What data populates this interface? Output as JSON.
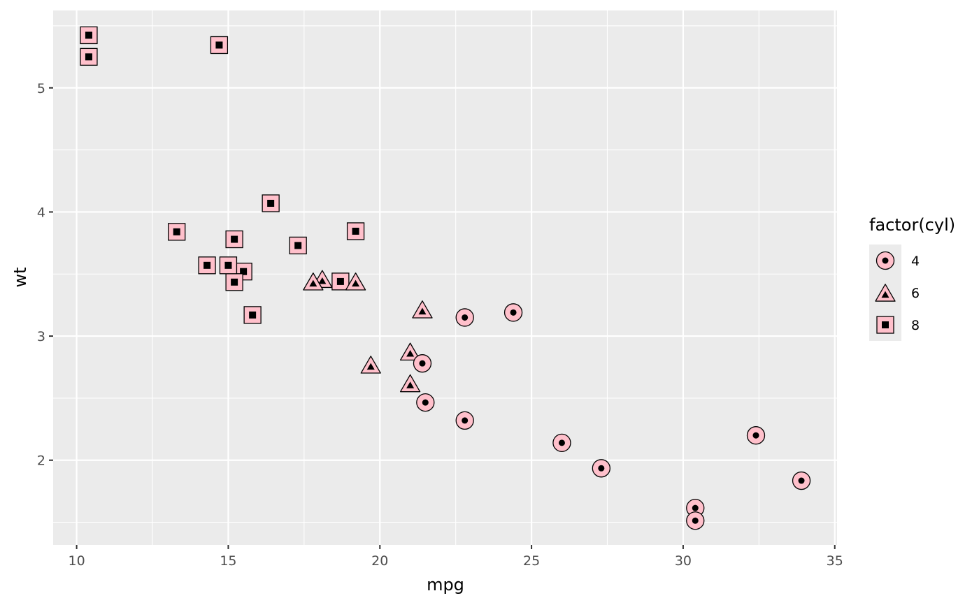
{
  "chart_data": {
    "type": "scatter",
    "title": "",
    "xlabel": "mpg",
    "ylabel": "wt",
    "xlim": [
      9.225,
      35.075
    ],
    "ylim": [
      1.31745,
      5.62355
    ],
    "x_ticks": [
      10,
      15,
      20,
      25,
      30,
      35
    ],
    "x_tick_labels": [
      "10",
      "15",
      "20",
      "25",
      "30",
      "35"
    ],
    "y_ticks": [
      2,
      3,
      4,
      5
    ],
    "y_tick_labels": [
      "2",
      "3",
      "4",
      "5"
    ],
    "grid": true,
    "background": "#ebebeb",
    "point_fill": "#ffc0cb",
    "point_stroke": "#000000",
    "legend": {
      "title": "factor(cyl)",
      "position": "right",
      "items": [
        {
          "label": "4",
          "shape": "circle"
        },
        {
          "label": "6",
          "shape": "triangle"
        },
        {
          "label": "8",
          "shape": "square"
        }
      ]
    },
    "series": [
      {
        "key": "4",
        "shape": "circle",
        "points": [
          [
            22.8,
            2.32
          ],
          [
            24.4,
            3.19
          ],
          [
            22.8,
            3.15
          ],
          [
            32.4,
            2.2
          ],
          [
            30.4,
            1.615
          ],
          [
            33.9,
            1.835
          ],
          [
            21.5,
            2.465
          ],
          [
            27.3,
            1.935
          ],
          [
            26.0,
            2.14
          ],
          [
            30.4,
            1.513
          ],
          [
            21.4,
            2.78
          ]
        ]
      },
      {
        "key": "6",
        "shape": "triangle",
        "points": [
          [
            21.0,
            2.62
          ],
          [
            21.0,
            2.875
          ],
          [
            21.4,
            3.215
          ],
          [
            18.1,
            3.46
          ],
          [
            19.2,
            3.44
          ],
          [
            17.8,
            3.44
          ],
          [
            19.7,
            2.77
          ]
        ]
      },
      {
        "key": "8",
        "shape": "square",
        "points": [
          [
            18.7,
            3.44
          ],
          [
            14.3,
            3.57
          ],
          [
            16.4,
            4.07
          ],
          [
            17.3,
            3.73
          ],
          [
            15.2,
            3.78
          ],
          [
            10.4,
            5.25
          ],
          [
            10.4,
            5.424
          ],
          [
            14.7,
            5.345
          ],
          [
            15.5,
            3.52
          ],
          [
            15.2,
            3.435
          ],
          [
            13.3,
            3.84
          ],
          [
            19.2,
            3.845
          ],
          [
            15.8,
            3.17
          ],
          [
            15.0,
            3.57
          ]
        ]
      }
    ]
  }
}
